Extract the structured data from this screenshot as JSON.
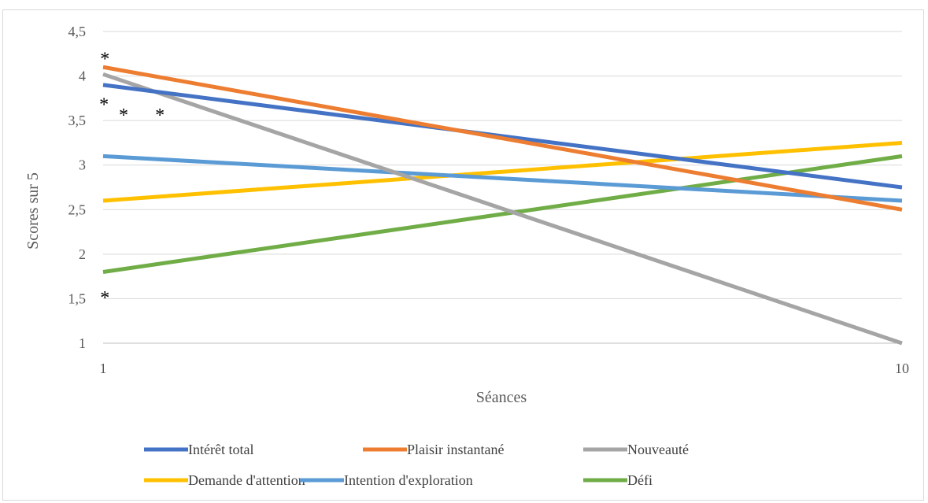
{
  "chart_data": {
    "type": "line",
    "title": "",
    "xlabel": "Séances",
    "ylabel": "Scores sur 5",
    "x": [
      1,
      10
    ],
    "x_tick_labels": [
      "1",
      "10"
    ],
    "ylim": [
      1,
      4.5
    ],
    "y_ticks": [
      1,
      1.5,
      2,
      2.5,
      3,
      3.5,
      4,
      4.5
    ],
    "y_tick_labels": [
      "1",
      "1,5",
      "2",
      "2,5",
      "3",
      "3,5",
      "4",
      "4,5"
    ],
    "grid": true,
    "legend_position": "bottom",
    "series": [
      {
        "name": "Intérêt total",
        "values": [
          3.9,
          2.75
        ],
        "color": "#4472C4"
      },
      {
        "name": "Plaisir instantané",
        "values": [
          4.1,
          2.5
        ],
        "color": "#ED7D31"
      },
      {
        "name": "Nouveauté",
        "values": [
          4.02,
          1.0
        ],
        "color": "#A5A5A5"
      },
      {
        "name": "Demande d'attention",
        "values": [
          2.6,
          3.25
        ],
        "color": "#FFC000"
      },
      {
        "name": "Intention d'exploration",
        "values": [
          3.1,
          2.6
        ],
        "color": "#5B9BD5"
      },
      {
        "name": "Défi",
        "values": [
          1.8,
          3.1
        ],
        "color": "#70AD47"
      }
    ],
    "annotations": [
      {
        "text": "*",
        "x": 1.02,
        "y": 4.23
      },
      {
        "text": "*",
        "x": 1.01,
        "y": 3.72
      },
      {
        "text": "*",
        "x": 1.64,
        "y": 3.6
      },
      {
        "text": "*",
        "x": 1.23,
        "y": 3.6
      },
      {
        "text": "*",
        "x": 1.02,
        "y": 1.55
      }
    ]
  }
}
